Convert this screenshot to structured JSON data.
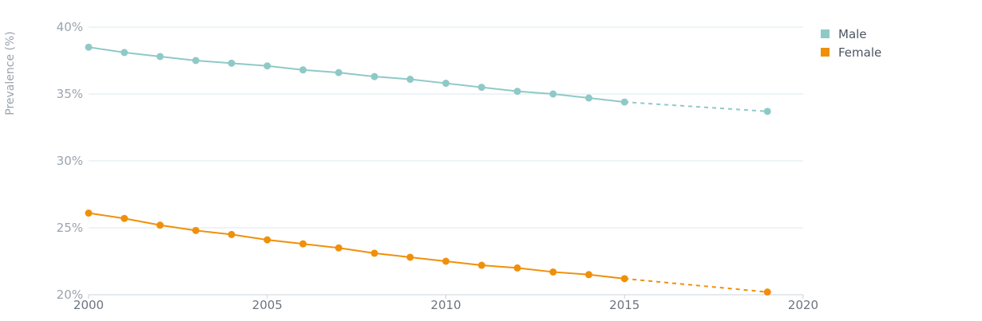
{
  "chart_data": {
    "type": "line",
    "ylabel": "Prevalence (%)",
    "xlim": [
      2000,
      2020
    ],
    "ylim": [
      20,
      40
    ],
    "x_ticks": [
      "2000",
      "2005",
      "2010",
      "2015",
      "2020"
    ],
    "y_ticks": [
      "20%",
      "25%",
      "30%",
      "35%",
      "40%"
    ],
    "grid": true,
    "legend_position": "top-right",
    "series": [
      {
        "name": "Male",
        "color": "#8fc9c7",
        "x": [
          2000,
          2001,
          2002,
          2003,
          2004,
          2005,
          2006,
          2007,
          2008,
          2009,
          2010,
          2011,
          2012,
          2013,
          2014,
          2015,
          2019
        ],
        "values": [
          38.5,
          38.1,
          37.8,
          37.5,
          37.3,
          37.1,
          36.8,
          36.6,
          36.3,
          36.1,
          35.8,
          35.5,
          35.2,
          35.0,
          34.7,
          34.4,
          33.7
        ],
        "projected_from_index": 15
      },
      {
        "name": "Female",
        "color": "#f0900a",
        "x": [
          2000,
          2001,
          2002,
          2003,
          2004,
          2005,
          2006,
          2007,
          2008,
          2009,
          2010,
          2011,
          2012,
          2013,
          2014,
          2015,
          2019
        ],
        "values": [
          26.1,
          25.7,
          25.2,
          24.8,
          24.5,
          24.1,
          23.8,
          23.5,
          23.1,
          22.8,
          22.5,
          22.2,
          22.0,
          21.7,
          21.5,
          21.2,
          20.2
        ],
        "projected_from_index": 15
      }
    ]
  }
}
